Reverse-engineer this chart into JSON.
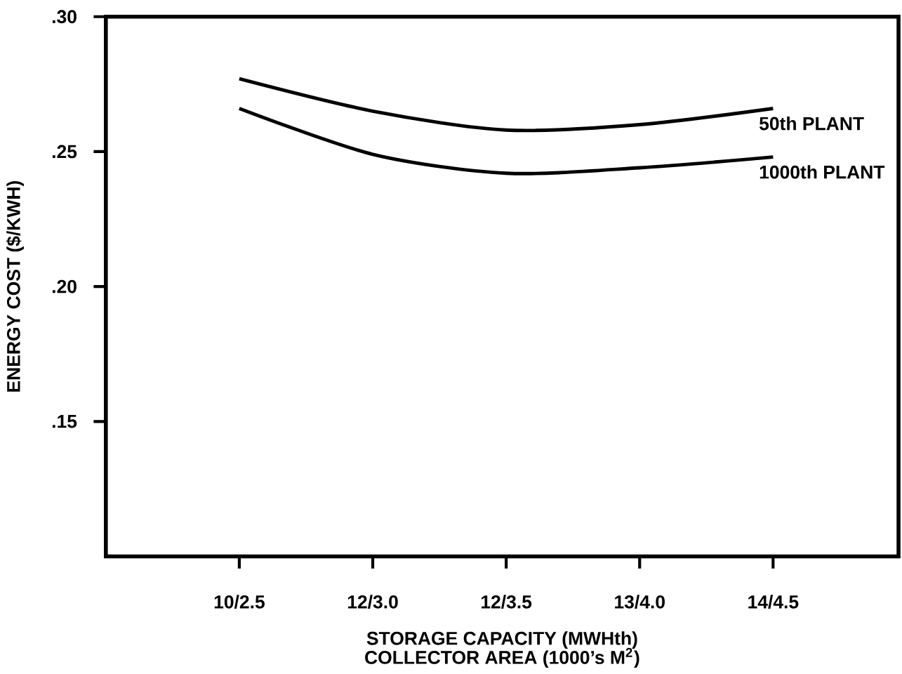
{
  "chart_data": {
    "type": "line",
    "ylabel": "ENERGY COST ($/KWH)",
    "xlabel": "STORAGE CAPACITY (MWHth)",
    "annotations": [
      "COLLECTOR AREA (1000’s M$^{2}$)"
    ],
    "categories": [
      "10/2.5",
      "12/3.0",
      "12/3.5",
      "13/4.0",
      "14/4.5"
    ],
    "series": [
      {
        "name": "50th PLANT",
        "color": "#000000",
        "values": [
          0.277,
          0.265,
          0.258,
          0.26,
          0.266
        ]
      },
      {
        "name": "1000th PLANT",
        "color": "#000000",
        "values": [
          0.266,
          0.249,
          0.242,
          0.244,
          0.248
        ]
      }
    ],
    "ylim": [
      0.1,
      0.3
    ],
    "yticks": [
      {
        "value": 0.15,
        "label": ".15"
      },
      {
        "value": 0.2,
        "label": ".20"
      },
      {
        "value": 0.25,
        "label": ".25"
      },
      {
        "value": 0.3,
        "label": ".30"
      }
    ],
    "legend": false,
    "grid": false,
    "line_style": "solid"
  }
}
